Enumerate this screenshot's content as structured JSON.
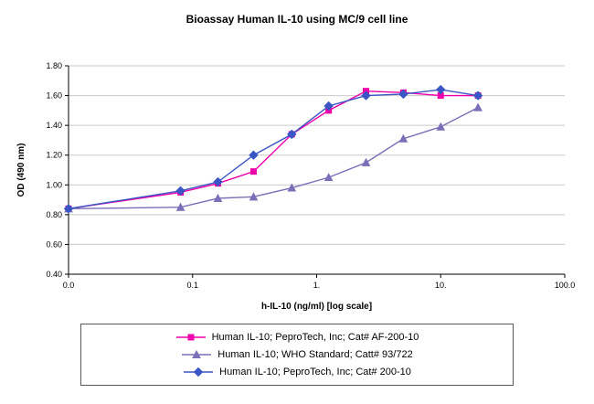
{
  "title": "Bioassay Human IL-10 using MC/9 cell line",
  "chart_data": {
    "type": "line",
    "title": "Bioassay Human IL-10 using MC/9 cell line",
    "xlabel": "h-IL-10 (ng/ml) [log scale]",
    "ylabel": "OD (490 nm)",
    "x_scale": "log",
    "grid": "horizontal",
    "legend_position": "bottom-box",
    "x_tick_labels": [
      "0.0",
      "0.1",
      "1.",
      "10.",
      "100.0"
    ],
    "x_tick_values": [
      0.01,
      0.1,
      1,
      10,
      100
    ],
    "ylim": [
      0.4,
      1.8
    ],
    "y_tick_step": 0.2,
    "x": [
      0,
      0.08,
      0.16,
      0.31,
      0.63,
      1.25,
      2.5,
      5,
      10,
      20
    ],
    "series": [
      {
        "name": "Human IL-10; PeproTech, Inc; Cat# AF-200-10",
        "marker": "square",
        "color": "#ee00aa",
        "values": [
          0.84,
          0.95,
          1.01,
          1.09,
          1.34,
          1.5,
          1.63,
          1.62,
          1.6,
          1.6
        ]
      },
      {
        "name": "Human IL-10; WHO Standard; Catt# 93/722",
        "marker": "triangle",
        "color": "#7a6fb8",
        "values": [
          0.84,
          0.85,
          0.91,
          0.92,
          0.98,
          1.05,
          1.15,
          1.31,
          1.39,
          1.52
        ]
      },
      {
        "name": "Human IL-10; PeproTech, Inc; Cat# 200-10",
        "marker": "diamond",
        "color": "#3a55c4",
        "values": [
          0.84,
          0.96,
          1.02,
          1.2,
          1.34,
          1.53,
          1.6,
          1.61,
          1.64,
          1.6
        ]
      }
    ]
  }
}
